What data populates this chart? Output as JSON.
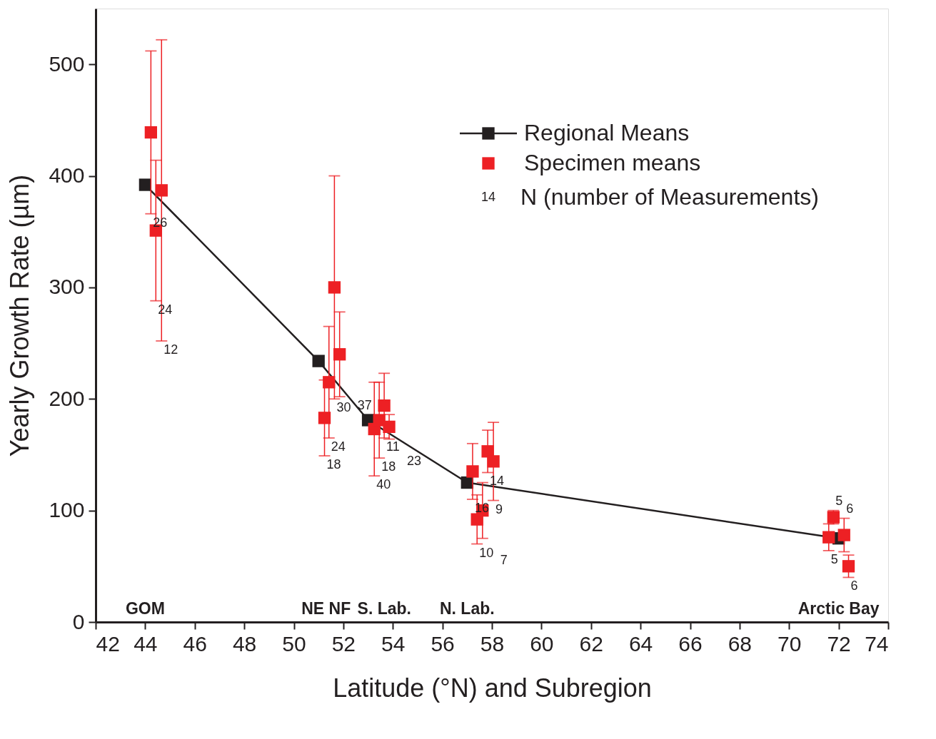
{
  "chart_data": {
    "type": "scatter",
    "xlabel": "Latitude (°N) and Subregion",
    "ylabel": "Yearly Growth Rate (µm)",
    "xlim": [
      42,
      74
    ],
    "xticks": [
      42,
      44,
      46,
      48,
      50,
      52,
      54,
      56,
      58,
      60,
      62,
      64,
      66,
      68,
      70,
      72,
      74
    ],
    "ylim": [
      0,
      550
    ],
    "yticks": [
      0,
      100,
      200,
      300,
      400,
      500
    ],
    "grid": false,
    "legend": "top right",
    "marker": "square",
    "series": [
      {
        "name": "Regional Means",
        "type": "line",
        "color": "#231f20",
        "line_style": "solid",
        "x": [
          44.0,
          51.0,
          53.0,
          57.0,
          72.0
        ],
        "values": [
          392,
          234,
          181,
          125,
          75
        ]
      },
      {
        "name": "Specimen means",
        "color": "#ed2024",
        "x": [
          44.23,
          44.66,
          44.43,
          51.64,
          51.85,
          51.42,
          51.24,
          53.25,
          53.45,
          53.65,
          53.85,
          57.22,
          57.83,
          58.06,
          57.62,
          57.4,
          71.79,
          72.22,
          71.6,
          72.4
        ],
        "values": [
          439,
          387,
          351,
          300,
          240,
          215,
          183,
          173,
          181,
          194,
          175,
          135,
          153,
          144,
          100,
          92,
          94,
          78,
          76,
          50
        ],
        "errors": [
          73,
          135,
          63,
          100,
          38,
          50,
          34,
          42,
          34,
          29,
          11,
          25,
          19,
          35,
          25,
          22,
          6,
          15,
          12,
          10
        ]
      }
    ],
    "annotations": [
      "14",
      "N (number of Measurements)",
      {
        "text": "26",
        "x": 44.23,
        "y": 366
      },
      {
        "text": "24",
        "x": 44.43,
        "y": 288
      },
      {
        "text": "12",
        "x": 44.66,
        "y": 252
      },
      {
        "text": "30",
        "x": 51.64,
        "y": 200
      },
      {
        "text": "37",
        "x": 51.85,
        "y": 202
      },
      {
        "text": "24",
        "x": 51.42,
        "y": 165
      },
      {
        "text": "18",
        "x": 51.24,
        "y": 149
      },
      {
        "text": "40",
        "x": 53.25,
        "y": 131
      },
      {
        "text": "18",
        "x": 53.45,
        "y": 147
      },
      {
        "text": "11",
        "x": 53.65,
        "y": 165
      },
      {
        "text": "23",
        "x": 53.85,
        "y": 164
      },
      {
        "text": "16",
        "x": 57.22,
        "y": 110
      },
      {
        "text": "14",
        "x": 57.83,
        "y": 134
      },
      {
        "text": "9",
        "x": 58.06,
        "y": 109
      },
      {
        "text": "7",
        "x": 57.62,
        "y": 75
      },
      {
        "text": "10",
        "x": 57.4,
        "y": 70
      },
      {
        "text": "5",
        "x": 71.79,
        "y": 100
      },
      {
        "text": "6",
        "x": 72.22,
        "y": 93
      },
      {
        "text": "5",
        "x": 71.6,
        "y": 64
      },
      {
        "text": "6",
        "x": 72.4,
        "y": 40
      },
      "GOM",
      "NE NF",
      "S. Lab.",
      "N. Lab.",
      "Arctic Bay"
    ]
  }
}
